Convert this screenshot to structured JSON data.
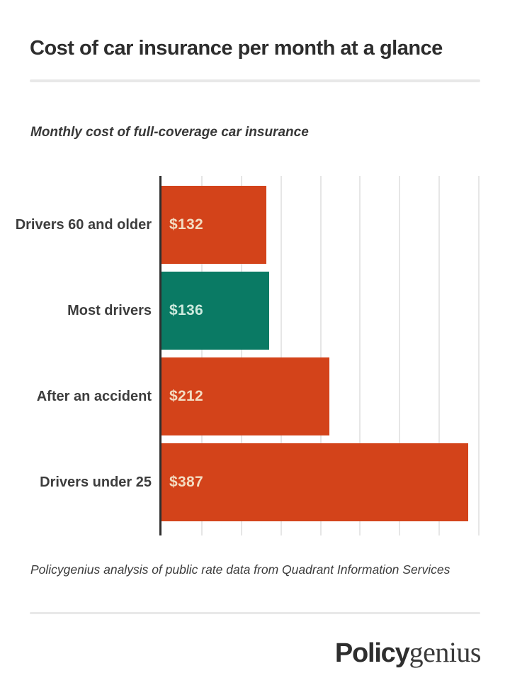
{
  "header": {
    "title": "Cost of car insurance per month at a glance"
  },
  "chart_data": {
    "type": "bar",
    "orientation": "horizontal",
    "title": "Monthly cost of full-coverage car insurance",
    "categories": [
      "Drivers 60 and older",
      "Most drivers",
      "After an accident",
      "Drivers under 25"
    ],
    "values": [
      132,
      136,
      212,
      387
    ],
    "value_labels": [
      "$132",
      "$136",
      "$212",
      "$387"
    ],
    "bar_colors": [
      "#d3431a",
      "#0a7a64",
      "#d3431a",
      "#d3431a"
    ],
    "value_label_colors": [
      "#f3dcc2",
      "#cdeade",
      "#f3dcc2",
      "#f3dcc2"
    ],
    "xlabel": "",
    "ylabel": "",
    "xlim": [
      0,
      425
    ],
    "gridlines": [
      50,
      100,
      150,
      200,
      250,
      300,
      350,
      400
    ],
    "grid": "vertical-only",
    "gridline_color": "#e6e6e6",
    "axis_color": "#2e2e2e",
    "legend": "none",
    "tick_labels_visible": false
  },
  "footer": {
    "source": "Policygenius analysis of public rate data from Quadrant Information Services",
    "logo_bold": "Policy",
    "logo_serif": "genius"
  }
}
